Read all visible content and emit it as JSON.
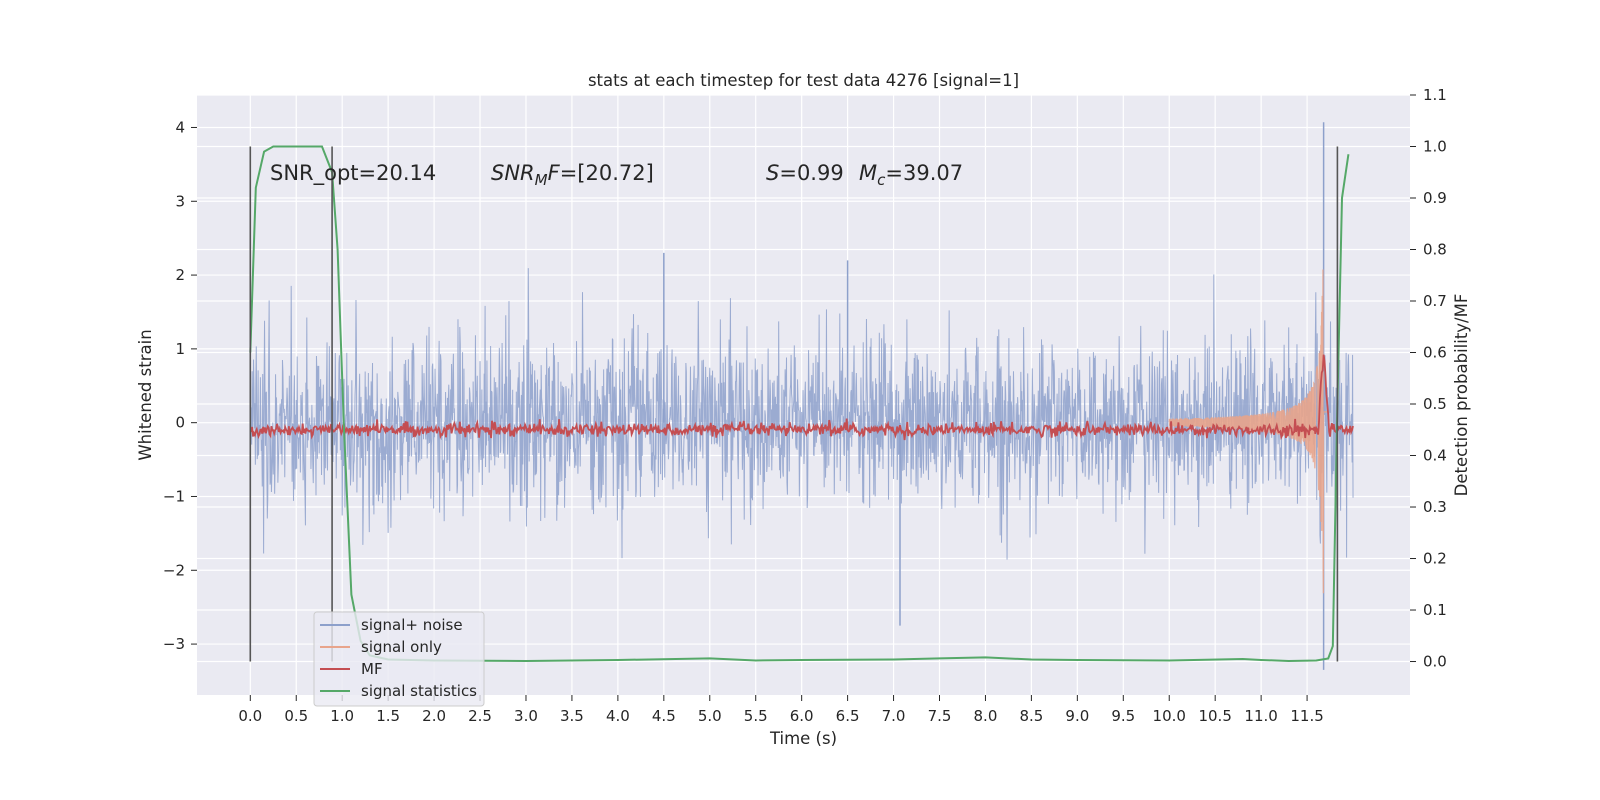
{
  "chart_data": {
    "type": "line",
    "title": "stats at each timestep for test data 4276 [signal=1]",
    "xlabel": "Time (s)",
    "ylabel_left": "Whitened strain",
    "ylabel_right": "Detection probability/MF",
    "xlim": [
      -0.58,
      12.62
    ],
    "ylim_left": [
      -3.69,
      4.44
    ],
    "ylim_right": [
      -0.065,
      1.1
    ],
    "x_ticks": [
      "0.0",
      "0.5",
      "1.0",
      "1.5",
      "2.0",
      "2.5",
      "3.0",
      "3.5",
      "4.0",
      "4.5",
      "5.0",
      "5.5",
      "6.0",
      "6.5",
      "7.0",
      "7.5",
      "8.0",
      "8.5",
      "9.0",
      "9.5",
      "10.0",
      "10.5",
      "11.0",
      "11.5"
    ],
    "y_ticks_left": [
      "−3",
      "−2",
      "−1",
      "0",
      "1",
      "2",
      "3",
      "4"
    ],
    "y_ticks_right": [
      "0.0",
      "0.1",
      "0.2",
      "0.3",
      "0.4",
      "0.5",
      "0.6",
      "0.7",
      "0.8",
      "0.9",
      "1.0",
      "1.1"
    ],
    "grid": true,
    "legend_position": "lower-left",
    "annotations": {
      "snr_opt": "SNR_opt=20.14",
      "snr_mf_var": "SNR",
      "snr_mf_sub": "M",
      "snr_mf_var2": "F",
      "snr_mf_value": "=[20.72]",
      "s_var": "S",
      "s_value": "=0.99",
      "mc_var": "M",
      "mc_sub": "c",
      "mc_value": "=39.07"
    },
    "vertical_markers_s": [
      0.0,
      0.89,
      11.83
    ],
    "series": [
      {
        "name": "signal+ noise",
        "color": "#8da0cb",
        "axis": "left",
        "noise_band_low": [
          -1.4,
          -1.3
        ],
        "noise_band_high": [
          1.4,
          1.3
        ],
        "notable_extremes": [
          {
            "x": 7.07,
            "y": -2.75
          },
          {
            "x": 11.68,
            "y": 4.07
          },
          {
            "x": 11.68,
            "y": -3.35
          },
          {
            "x": 4.5,
            "y": 2.3
          },
          {
            "x": 6.5,
            "y": 2.2
          }
        ]
      },
      {
        "name": "signal only",
        "color": "#e8a48b",
        "axis": "left",
        "chirp": {
          "start_x": 10.0,
          "peak_x": 11.68,
          "peak_amplitude": 3.0
        }
      },
      {
        "name": "MF",
        "color": "#c44e52",
        "axis": "right",
        "baseline": 0.45,
        "peak": {
          "x": 11.68,
          "y": 0.61
        }
      },
      {
        "name": "signal statistics",
        "color": "#55a868",
        "axis": "right",
        "x": [
          0.0,
          0.06,
          0.15,
          0.25,
          0.4,
          0.6,
          0.78,
          0.89,
          0.95,
          1.02,
          1.1,
          1.2,
          1.3,
          1.5,
          2.0,
          3.0,
          4.0,
          5.0,
          5.5,
          6.0,
          7.0,
          7.5,
          8.0,
          8.5,
          9.0,
          10.0,
          10.8,
          11.0,
          11.3,
          11.6,
          11.73,
          11.78,
          11.83,
          11.88,
          11.95
        ],
        "y": [
          0.6,
          0.92,
          0.99,
          1.0,
          1.0,
          1.0,
          1.0,
          0.95,
          0.8,
          0.45,
          0.13,
          0.04,
          0.012,
          0.004,
          0.002,
          0.001,
          0.003,
          0.006,
          0.002,
          0.003,
          0.004,
          0.006,
          0.008,
          0.004,
          0.003,
          0.002,
          0.005,
          0.003,
          0.001,
          0.002,
          0.006,
          0.03,
          0.5,
          0.9,
          0.985
        ]
      }
    ]
  }
}
